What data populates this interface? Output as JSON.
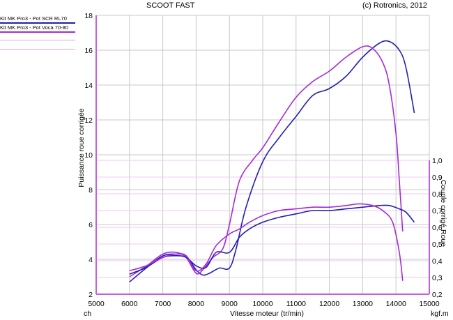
{
  "header": {
    "title": "SCOOT FAST",
    "copyright": "(c) Rotronics, 2012"
  },
  "legend": {
    "items": [
      {
        "label": "Kit MK Pro3 - Pot SCR RL70",
        "color": "#1f1fb0"
      },
      {
        "label": "Kit MK Pro3 - Pot Voca 70-80",
        "color": "#a62ad6"
      }
    ]
  },
  "chart_data": {
    "type": "line",
    "xlabel": "Vitesse moteur (tr/min)",
    "x_unit_left": "ch",
    "x_unit_right": "kgf.m",
    "ylabel_left": "Puissance roue corrigée",
    "ylabel_right": "Couple corrigé Roue",
    "xlim": [
      5000,
      15000
    ],
    "ylim_left": [
      2,
      18
    ],
    "ylim_right": [
      0.2,
      1.0
    ],
    "x_ticks": [
      5000,
      6000,
      7000,
      8000,
      9000,
      10000,
      11000,
      12000,
      13000,
      14000,
      15000
    ],
    "y_ticks_left": [
      2,
      4,
      6,
      8,
      10,
      12,
      14,
      16,
      18
    ],
    "y_ticks_right": [
      "0,2",
      "0,3",
      "0,4",
      "0,5",
      "0,6",
      "0,7",
      "0,8",
      "0,9",
      "1,0"
    ],
    "grid": true,
    "series": [
      {
        "name": "Kit MK Pro3 - Pot SCR RL70",
        "quantity": "power",
        "axis": "left",
        "color": "#1f1fb0",
        "x": [
          6000,
          6500,
          7000,
          7400,
          7700,
          8000,
          8200,
          8400,
          8700,
          9000,
          9200,
          9500,
          10000,
          10500,
          11000,
          11500,
          12000,
          12500,
          13000,
          13500,
          13800,
          14100,
          14300,
          14550
        ],
        "y": [
          2.7,
          3.5,
          4.2,
          4.3,
          4.2,
          3.4,
          3.1,
          3.2,
          3.5,
          3.5,
          4.6,
          7.0,
          9.6,
          11.0,
          12.2,
          13.4,
          13.8,
          14.5,
          15.6,
          16.4,
          16.5,
          16.0,
          15.0,
          12.4
        ]
      },
      {
        "name": "Kit MK Pro3 - Pot Voca 70-80",
        "quantity": "power",
        "axis": "left",
        "color": "#a62ad6",
        "x": [
          6000,
          6500,
          7000,
          7400,
          7700,
          8000,
          8200,
          8500,
          8800,
          9000,
          9300,
          9700,
          10000,
          10500,
          11000,
          11500,
          12000,
          12500,
          13000,
          13300,
          13600,
          13800,
          14000,
          14100,
          14200
        ],
        "y": [
          3.0,
          3.6,
          4.3,
          4.4,
          4.1,
          3.2,
          3.4,
          4.1,
          4.6,
          6.0,
          8.5,
          9.7,
          10.4,
          11.9,
          13.3,
          14.2,
          14.8,
          15.6,
          16.2,
          16.1,
          15.3,
          14.0,
          11.2,
          8.5,
          5.6
        ]
      },
      {
        "name": "Kit MK Pro3 - Pot SCR RL70",
        "quantity": "torque",
        "axis": "right",
        "color": "#1f1fb0",
        "x": [
          6000,
          6500,
          7000,
          7400,
          7700,
          8000,
          8300,
          8600,
          9000,
          9300,
          9600,
          10000,
          10500,
          11000,
          11500,
          12000,
          12500,
          13000,
          13500,
          13800,
          14100,
          14300,
          14550
        ],
        "y": [
          0.32,
          0.36,
          0.42,
          0.43,
          0.42,
          0.37,
          0.36,
          0.45,
          0.45,
          0.54,
          0.59,
          0.63,
          0.66,
          0.68,
          0.7,
          0.7,
          0.71,
          0.72,
          0.73,
          0.73,
          0.71,
          0.69,
          0.63
        ]
      },
      {
        "name": "Kit MK Pro3 - Pot Voca 70-80",
        "quantity": "torque",
        "axis": "right",
        "color": "#a62ad6",
        "x": [
          6000,
          6500,
          7000,
          7400,
          7700,
          8000,
          8300,
          8600,
          9000,
          9300,
          9600,
          10000,
          10500,
          11000,
          11500,
          12000,
          12500,
          12900,
          13300,
          13600,
          13900,
          14100,
          14200
        ],
        "y": [
          0.34,
          0.37,
          0.42,
          0.44,
          0.43,
          0.34,
          0.38,
          0.49,
          0.56,
          0.59,
          0.63,
          0.67,
          0.7,
          0.71,
          0.72,
          0.72,
          0.73,
          0.74,
          0.73,
          0.7,
          0.63,
          0.45,
          0.28
        ]
      }
    ]
  }
}
